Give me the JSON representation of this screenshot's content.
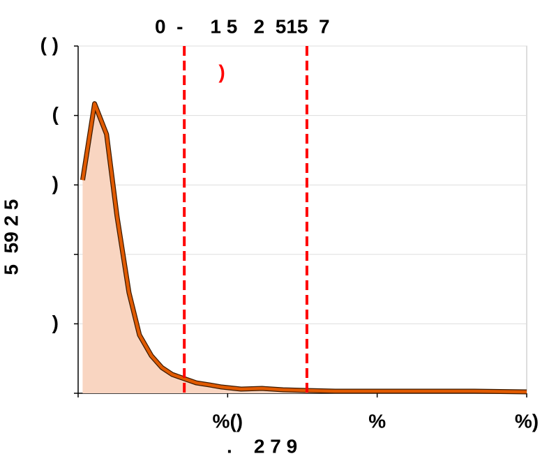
{
  "chart_data": {
    "type": "area",
    "title": "0  -     1 5   2  515  7",
    "y_label": "5  59 2 5",
    "x_label": ".    2 7 9",
    "annotation": ")",
    "annotation_color": "#ff0000",
    "series": [
      {
        "color": "#e05a00",
        "fill": "#f9d5c1",
        "x": [
          0.03,
          0.11,
          0.19,
          0.26,
          0.34,
          0.41,
          0.49,
          0.56,
          0.63,
          0.71,
          0.79,
          0.88,
          0.96,
          1.09,
          1.23,
          1.37,
          1.53,
          1.72,
          2.0,
          2.09,
          2.37,
          2.65,
          3.0
        ],
        "values": [
          3.07,
          4.17,
          3.73,
          2.55,
          1.45,
          0.84,
          0.54,
          0.37,
          0.27,
          0.21,
          0.15,
          0.12,
          0.09,
          0.06,
          0.07,
          0.05,
          0.04,
          0.03,
          0.03,
          0.03,
          0.03,
          0.03,
          0.02
        ]
      }
    ],
    "vlines": [
      0.71,
      1.53
    ],
    "vline_color": "#ff0000",
    "xlim": [
      0,
      3
    ],
    "xticks": [
      {
        "value": 0,
        "label": null
      },
      {
        "value": 1,
        "label": "%()"
      },
      {
        "value": 2,
        "label": "%"
      },
      {
        "value": 3,
        "label": "%)"
      }
    ],
    "ylim": [
      0,
      5
    ],
    "yticks": [
      {
        "value": 0,
        "label": null
      },
      {
        "value": 1,
        "label": ")"
      },
      {
        "value": 2,
        "label": null
      },
      {
        "value": 3,
        "label": ")"
      },
      {
        "value": 4,
        "label": "("
      },
      {
        "value": 5,
        "label": "( )"
      }
    ],
    "grid": true
  }
}
